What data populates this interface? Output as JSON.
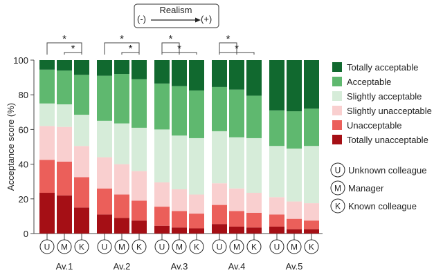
{
  "chart_data": {
    "type": "bar",
    "stacked": true,
    "ylabel": "Acceptance score (%)",
    "ylim": [
      0,
      100
    ],
    "yticks": [
      0,
      20,
      40,
      60,
      80,
      100
    ],
    "grid": false,
    "legend_position": "right",
    "groups": [
      "Av.1",
      "Av.2",
      "Av.3",
      "Av.4",
      "Av.5"
    ],
    "bar_letters": [
      "U",
      "M",
      "K"
    ],
    "header": {
      "label": "Realism",
      "minus": "(-)",
      "plus": "(+)"
    },
    "significance_marker": "*",
    "significance": [
      {
        "group": "Av.1",
        "pairs": [
          [
            "U",
            "K"
          ],
          [
            "M",
            "K"
          ]
        ]
      },
      {
        "group": "Av.2",
        "pairs": [
          [
            "U",
            "K"
          ],
          [
            "M",
            "K"
          ]
        ]
      },
      {
        "group": "Av.3",
        "pairs": [
          [
            "U",
            "M"
          ],
          [
            "U",
            "K"
          ]
        ]
      },
      {
        "group": "Av.4",
        "pairs": [
          [
            "U",
            "M"
          ],
          [
            "U",
            "K"
          ]
        ]
      }
    ],
    "series": [
      {
        "name": "Totally unacceptable",
        "color": "#a50f15",
        "values": [
          23.5,
          22,
          15,
          11,
          9,
          7.5,
          4.5,
          3.5,
          3,
          5.5,
          4,
          3.5,
          4,
          2.5,
          2.5
        ]
      },
      {
        "name": "Unacceptable",
        "color": "#eb5f5a",
        "values": [
          19,
          19.5,
          17.5,
          15,
          13.5,
          11.5,
          11,
          9.5,
          8.5,
          11,
          9,
          8.5,
          7,
          6,
          5
        ]
      },
      {
        "name": "Slightly unacceptable",
        "color": "#f9cfcf",
        "values": [
          19.5,
          20,
          18,
          18,
          17.5,
          17,
          14,
          12.5,
          11,
          12.5,
          13,
          11.5,
          10,
          10,
          10
        ]
      },
      {
        "name": "Slightly acceptable",
        "color": "#d6ecd9",
        "values": [
          13,
          13,
          18,
          21,
          23.5,
          25,
          30.5,
          31,
          32.5,
          30,
          29.5,
          31.5,
          29.5,
          30.5,
          33
        ]
      },
      {
        "name": "Acceptable",
        "color": "#5fb86f",
        "values": [
          19.5,
          19.5,
          23,
          26,
          28.5,
          28,
          26.5,
          28.5,
          27.5,
          25.5,
          27.5,
          24.5,
          20.5,
          21.5,
          21.5
        ]
      },
      {
        "name": "Totally acceptable",
        "color": "#11692f",
        "values": [
          5.5,
          6,
          8.5,
          9,
          8,
          11,
          13.5,
          15,
          17.5,
          15.5,
          17,
          20.5,
          29,
          29.5,
          28
        ]
      }
    ],
    "legend_order": [
      "Totally acceptable",
      "Acceptable",
      "Slightly acceptable",
      "Slightly unacceptable",
      "Unacceptable",
      "Totally unacceptable"
    ],
    "bar_legend": [
      {
        "letter": "U",
        "label": "Unknown colleague"
      },
      {
        "letter": "M",
        "label": "Manager"
      },
      {
        "letter": "K",
        "label": "Known colleague"
      }
    ]
  }
}
